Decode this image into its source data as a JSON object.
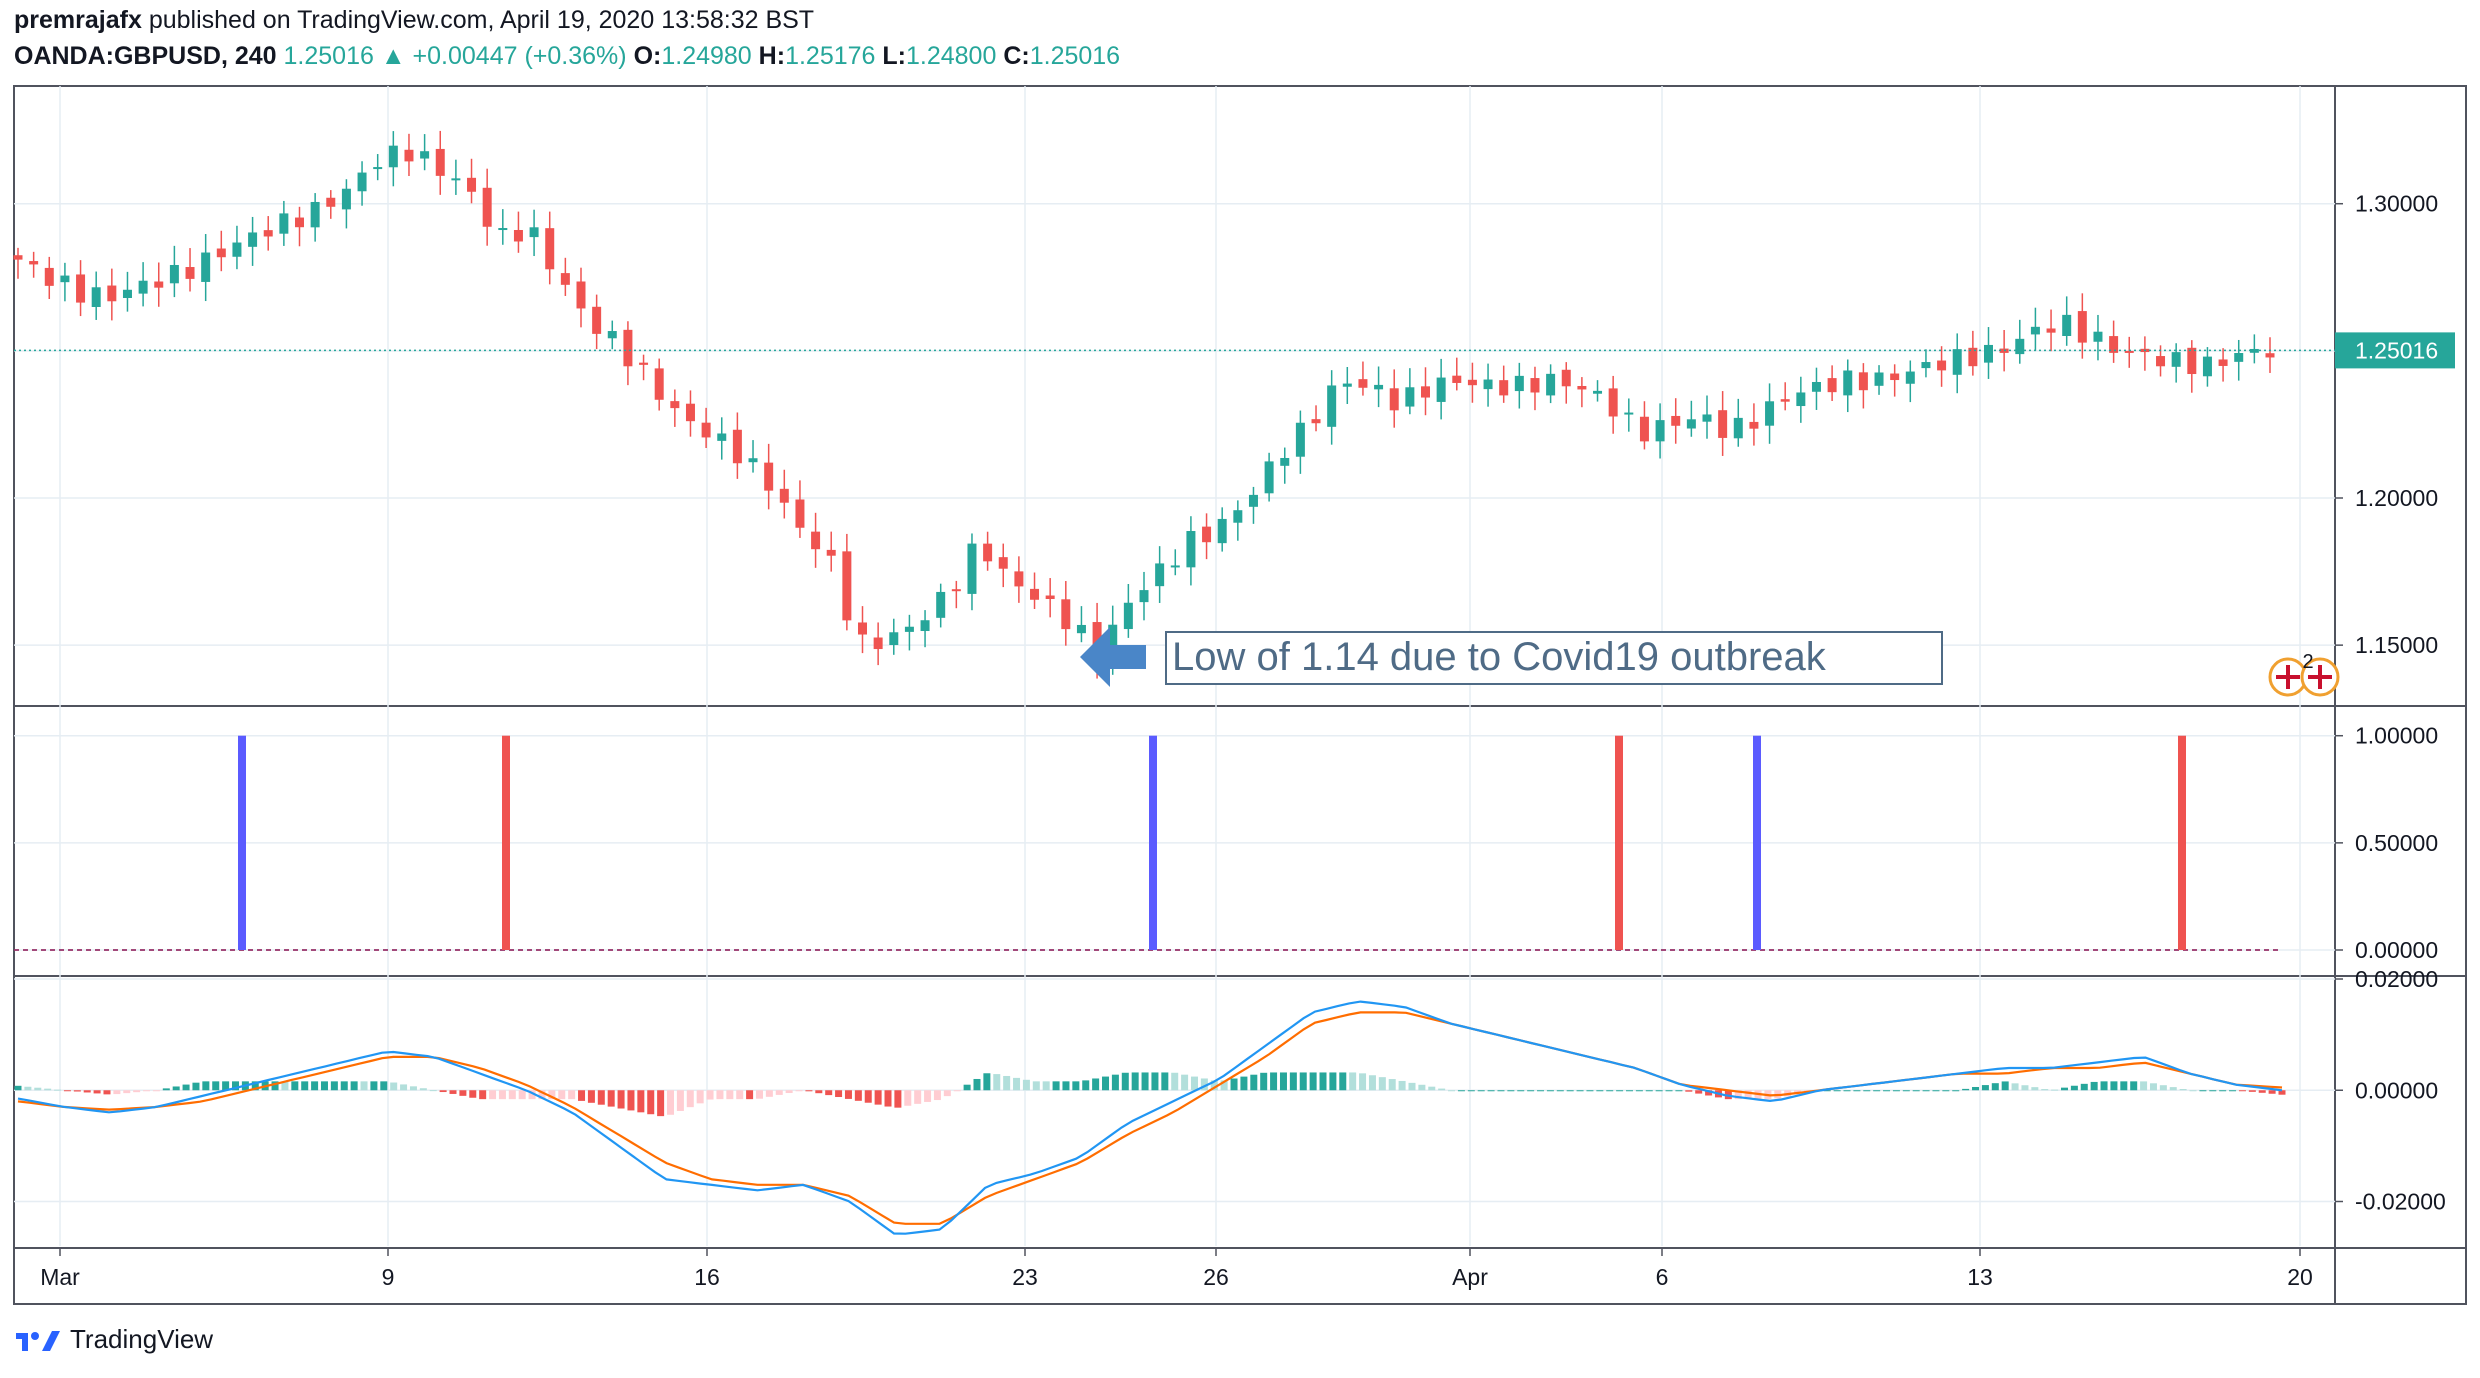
{
  "header": {
    "author": "premrajafx",
    "published": "published on TradingView.com, April 19, 2020 13:58:32 BST",
    "symbol": "OANDA:GBPUSD, 240",
    "last": "1.25016",
    "change": "+0.00447 (+0.36%)",
    "o_label": "O:",
    "o_value": "1.24980",
    "h_label": "H:",
    "h_value": "1.25176",
    "l_label": "L:",
    "l_value": "1.24800",
    "c_label": "C:",
    "c_value": "1.25016"
  },
  "footer": {
    "brand": "TradingView"
  },
  "colors": {
    "up": "#26a69a",
    "down": "#ef5350",
    "macd": "#2196f3",
    "signal": "#ff6d00",
    "bull_signal": "#5b5bff",
    "bear_signal": "#ef5350",
    "annotation": "#4a86c8"
  },
  "chart_data": [
    {
      "type": "candlestick",
      "title": "",
      "x_ticks": [
        "Mar",
        "9",
        "16",
        "23",
        "26",
        "Apr",
        "6",
        "13",
        "20"
      ],
      "y_ticks": [
        "1.30000",
        "1.25000",
        "1.20000",
        "1.15000"
      ],
      "ylim": [
        1.13,
        1.34
      ],
      "last_price_label": "1.25016",
      "annotation": "Low of 1.14 due to Covid19 outbreak",
      "badge": "2",
      "close_path": [
        1.281,
        1.275,
        1.27,
        1.268,
        1.272,
        1.275,
        1.279,
        1.285,
        1.29,
        1.294,
        1.298,
        1.305,
        1.315,
        1.318,
        1.312,
        1.305,
        1.288,
        1.292,
        1.275,
        1.26,
        1.252,
        1.24,
        1.228,
        1.222,
        1.215,
        1.205,
        1.19,
        1.18,
        1.15,
        1.152,
        1.158,
        1.168,
        1.185,
        1.172,
        1.166,
        1.158,
        1.147,
        1.165,
        1.175,
        1.185,
        1.19,
        1.2,
        1.215,
        1.225,
        1.24,
        1.238,
        1.232,
        1.238,
        1.24,
        1.238,
        1.238,
        1.24,
        1.238,
        1.232,
        1.222,
        1.225,
        1.228,
        1.222,
        1.228,
        1.235,
        1.238,
        1.24,
        1.24,
        1.243,
        1.246,
        1.248,
        1.25,
        1.256,
        1.26,
        1.255,
        1.25,
        1.248,
        1.246,
        1.245,
        1.249,
        1.25016
      ],
      "candle_count": 145
    },
    {
      "type": "bar",
      "title": "",
      "y_ticks": [
        "1.00000",
        "0.50000",
        "0.00000"
      ],
      "ylim": [
        0,
        1.05
      ],
      "x": [
        "Mar 5",
        "Mar 11",
        "Mar 25",
        "Apr 3",
        "Apr 8",
        "Apr 17"
      ],
      "series": [
        {
          "values": [
            1,
            0,
            1,
            0,
            1,
            0
          ],
          "color": "#5b5bff"
        },
        {
          "values": [
            0,
            1,
            0,
            1,
            0,
            1
          ],
          "color": "#ef5350"
        }
      ]
    },
    {
      "type": "line",
      "title": "",
      "y_ticks": [
        "0.02000",
        "0.00000",
        "-0.02000"
      ],
      "ylim": [
        -0.028,
        0.02
      ],
      "macd_path": [
        -0.0015,
        -0.003,
        -0.004,
        -0.003,
        -0.001,
        0.001,
        0.003,
        0.005,
        0.007,
        0.006,
        0.003,
        0.0,
        -0.004,
        -0.01,
        -0.016,
        -0.017,
        -0.018,
        -0.017,
        -0.02,
        -0.026,
        -0.025,
        -0.017,
        -0.015,
        -0.012,
        -0.006,
        -0.002,
        0.002,
        0.008,
        0.014,
        0.016,
        0.015,
        0.012,
        0.01,
        0.008,
        0.006,
        0.004,
        0.001,
        -0.001,
        -0.002,
        0.0,
        0.001,
        0.002,
        0.003,
        0.004,
        0.004,
        0.005,
        0.006,
        0.003,
        0.001,
        0.0
      ],
      "signal_path": [
        -0.002,
        -0.003,
        -0.0035,
        -0.003,
        -0.002,
        0.0,
        0.002,
        0.004,
        0.006,
        0.006,
        0.004,
        0.001,
        -0.003,
        -0.008,
        -0.013,
        -0.016,
        -0.017,
        -0.017,
        -0.019,
        -0.024,
        -0.024,
        -0.019,
        -0.016,
        -0.013,
        -0.008,
        -0.004,
        0.001,
        0.006,
        0.012,
        0.014,
        0.014,
        0.012,
        0.01,
        0.008,
        0.006,
        0.004,
        0.001,
        0.0,
        -0.001,
        0.0,
        0.001,
        0.002,
        0.003,
        0.003,
        0.004,
        0.004,
        0.005,
        0.003,
        0.001,
        0.0005
      ]
    }
  ]
}
